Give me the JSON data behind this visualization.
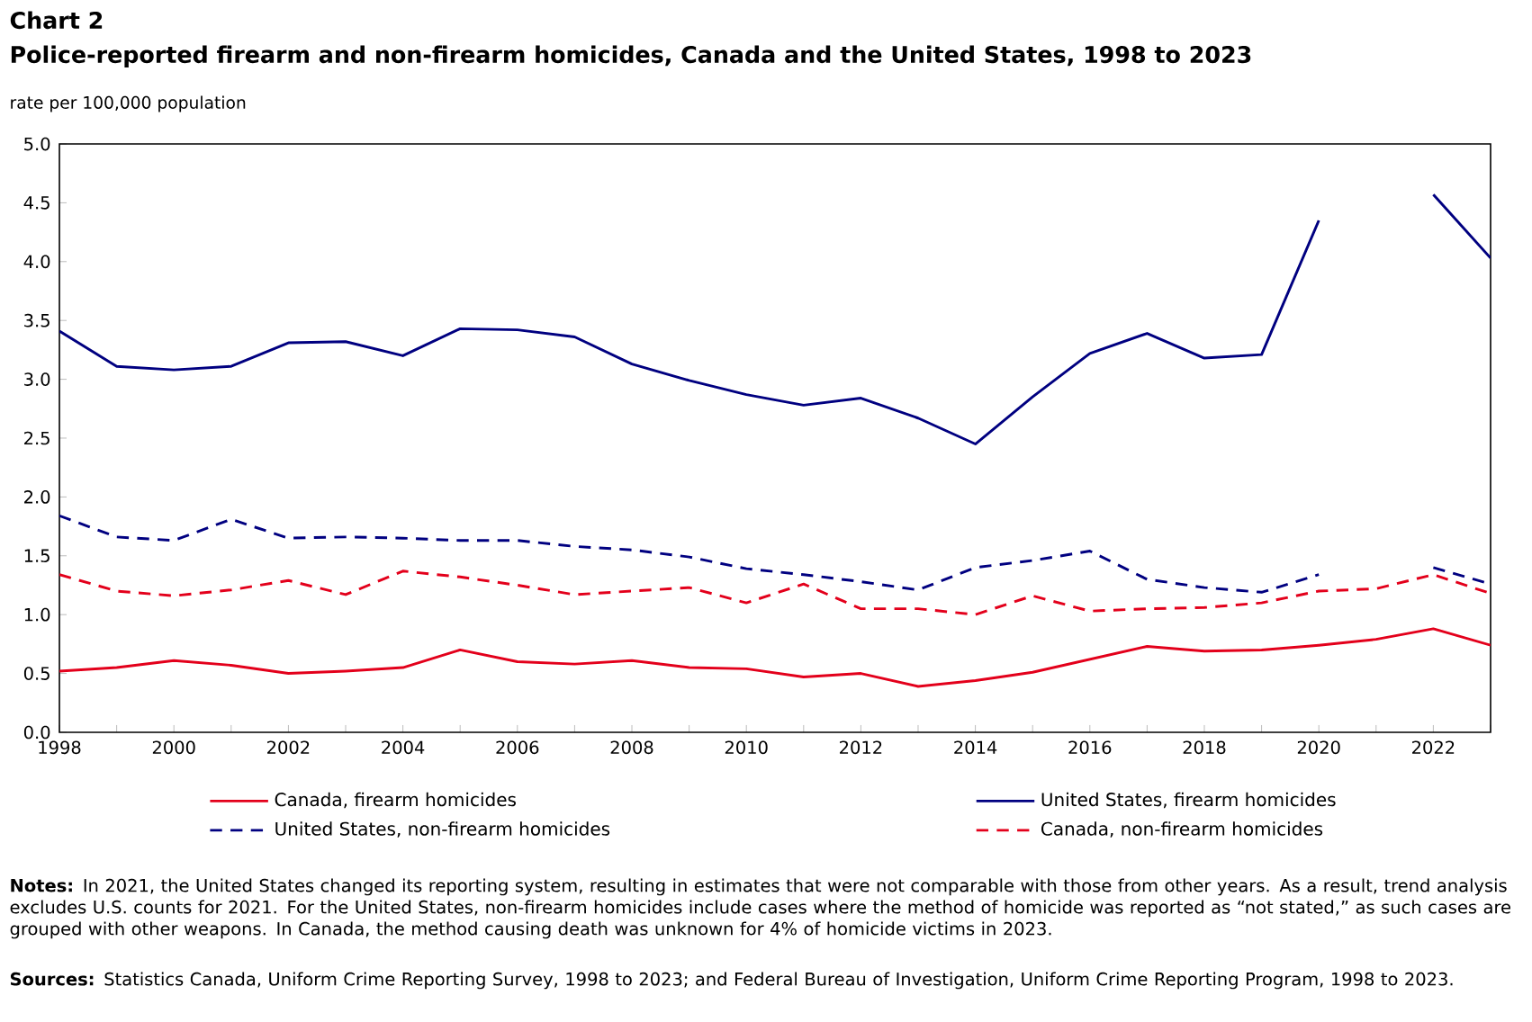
{
  "chart_data": {
    "type": "line",
    "title": "Chart 2",
    "subtitle": "Police-reported firearm and non-firearm homicides, Canada and the United States, 1998 to 2023",
    "ylabel": "rate per 100,000 population",
    "x": [
      1998,
      1999,
      2000,
      2001,
      2002,
      2003,
      2004,
      2005,
      2006,
      2007,
      2008,
      2009,
      2010,
      2011,
      2012,
      2013,
      2014,
      2015,
      2016,
      2017,
      2018,
      2019,
      2020,
      2021,
      2022,
      2023
    ],
    "series": [
      {
        "name": "Canada, firearm homicides",
        "color": "#e3001b",
        "line_style": "solid",
        "values": [
          0.52,
          0.55,
          0.61,
          0.57,
          0.5,
          0.52,
          0.55,
          0.7,
          0.6,
          0.58,
          0.61,
          0.55,
          0.54,
          0.47,
          0.5,
          0.39,
          0.44,
          0.51,
          0.62,
          0.73,
          0.69,
          0.7,
          0.74,
          0.79,
          0.88,
          0.74
        ]
      },
      {
        "name": "United States, firearm homicides",
        "color": "#000080",
        "line_style": "solid",
        "values": [
          3.41,
          3.11,
          3.08,
          3.11,
          3.31,
          3.32,
          3.2,
          3.43,
          3.42,
          3.36,
          3.13,
          2.99,
          2.87,
          2.78,
          2.84,
          2.67,
          2.45,
          2.85,
          3.22,
          3.39,
          3.18,
          3.21,
          4.35,
          null,
          4.57,
          4.03
        ]
      },
      {
        "name": "United States, non-firearm homicides",
        "color": "#000080",
        "line_style": "dashed",
        "values": [
          1.84,
          1.66,
          1.63,
          1.81,
          1.65,
          1.66,
          1.65,
          1.63,
          1.63,
          1.58,
          1.55,
          1.49,
          1.39,
          1.34,
          1.28,
          1.21,
          1.4,
          1.46,
          1.54,
          1.3,
          1.23,
          1.19,
          1.34,
          null,
          1.4,
          1.26
        ]
      },
      {
        "name": "Canada, non-firearm homicides",
        "color": "#e3001b",
        "line_style": "dashed",
        "values": [
          1.34,
          1.2,
          1.16,
          1.21,
          1.29,
          1.17,
          1.37,
          1.32,
          1.25,
          1.17,
          1.2,
          1.23,
          1.1,
          1.26,
          1.05,
          1.05,
          1.0,
          1.16,
          1.03,
          1.05,
          1.06,
          1.1,
          1.2,
          1.22,
          1.34,
          1.18
        ]
      }
    ],
    "xlim": [
      1998,
      2023
    ],
    "xticks": [
      1998,
      {
        "value": 1999,
        "label": null
      },
      2000,
      {
        "value": 2001,
        "label": null
      },
      2002,
      {
        "value": 2003,
        "label": null
      },
      2004,
      {
        "value": 2005,
        "label": null
      },
      2006,
      {
        "value": 2007,
        "label": null
      },
      2008,
      {
        "value": 2009,
        "label": null
      },
      2010,
      {
        "value": 2011,
        "label": null
      },
      2012,
      {
        "value": 2013,
        "label": null
      },
      2014,
      {
        "value": 2015,
        "label": null
      },
      2016,
      {
        "value": 2017,
        "label": null
      },
      2018,
      {
        "value": 2019,
        "label": null
      },
      2020,
      {
        "value": 2021,
        "label": null
      },
      2022,
      {
        "value": 2023,
        "label": null
      }
    ],
    "ylim": [
      0,
      5
    ],
    "yticks": [
      {
        "value": 0,
        "label": "0.0"
      },
      {
        "value": 0.5,
        "label": "0.5"
      },
      {
        "value": 1,
        "label": "1.0"
      },
      {
        "value": 1.5,
        "label": "1.5"
      },
      {
        "value": 2,
        "label": "2.0"
      },
      {
        "value": 2.5,
        "label": "2.5"
      },
      {
        "value": 3,
        "label": "3.0"
      },
      {
        "value": 3.5,
        "label": "3.5"
      },
      {
        "value": 4,
        "label": "4.0"
      },
      {
        "value": 4.5,
        "label": "4.5"
      },
      {
        "value": 5,
        "label": "5.0"
      }
    ],
    "grid": false,
    "legend": "bottom",
    "marker": "none",
    "annotations": [
      "**Notes:** In 2021, the United States changed its reporting system, resulting in estimates that were not comparable with those from other years. As a result, trend analysis excludes U.S. counts for 2021. For the United States, non-firearm homicides include cases where the method of homicide was reported as “not stated,” as such cases are grouped with other weapons. In Canada, the method causing death was unknown for 4% of homicide victims in 2023.",
      "**Sources:** Statistics Canada, Uniform Crime Reporting Survey, 1998 to 2023; and Federal Bureau of Investigation, Uniform Crime Reporting Program, 1998 to 2023."
    ]
  }
}
